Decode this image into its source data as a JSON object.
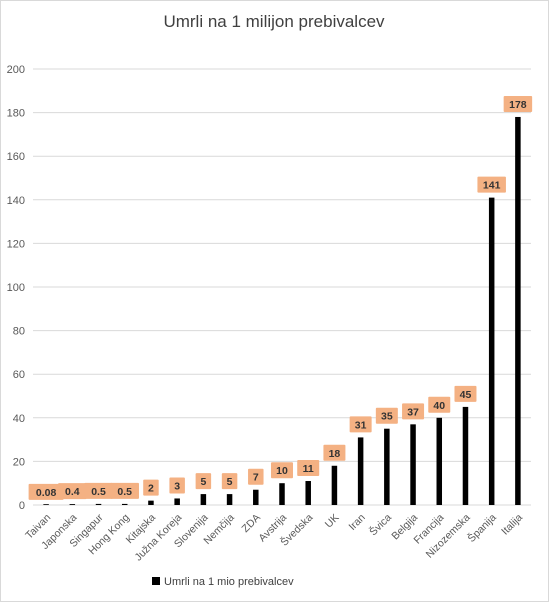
{
  "chart_data": {
    "type": "bar",
    "title": "Umrli na 1 milijon prebivalcev",
    "xlabel": "",
    "ylabel": "",
    "ylim": [
      0,
      200
    ],
    "yticks": [
      0,
      20,
      40,
      60,
      80,
      100,
      120,
      140,
      160,
      180,
      200
    ],
    "grid": true,
    "legend_position": "bottom",
    "categories": [
      "Taivan",
      "Japonska",
      "Singapur",
      "Hong Kong",
      "Kitajska",
      "Južna Koreja",
      "Slovenija",
      "Nemčija",
      "ZDA",
      "Avstrija",
      "Švedska",
      "UK",
      "Iran",
      "Švica",
      "Belgija",
      "Francija",
      "Nizozemska",
      "Španija",
      "Italija"
    ],
    "series": [
      {
        "name": "Umrli na 1 mio prebivalcev",
        "values": [
          0.08,
          0.4,
          0.5,
          0.5,
          2,
          3,
          5,
          5,
          7,
          10,
          11,
          18,
          31,
          35,
          37,
          40,
          45,
          141,
          178
        ],
        "value_labels": [
          "0.08",
          "0.4",
          "0.5",
          "0.5",
          "2",
          "3",
          "5",
          "5",
          "7",
          "10",
          "11",
          "18",
          "31",
          "35",
          "37",
          "40",
          "45",
          "141",
          "178"
        ]
      }
    ],
    "colors": {
      "bar": "#000000",
      "label_fill": "#f4b183",
      "gridline": "#d9d9d9",
      "axis_text": "#595959"
    }
  }
}
